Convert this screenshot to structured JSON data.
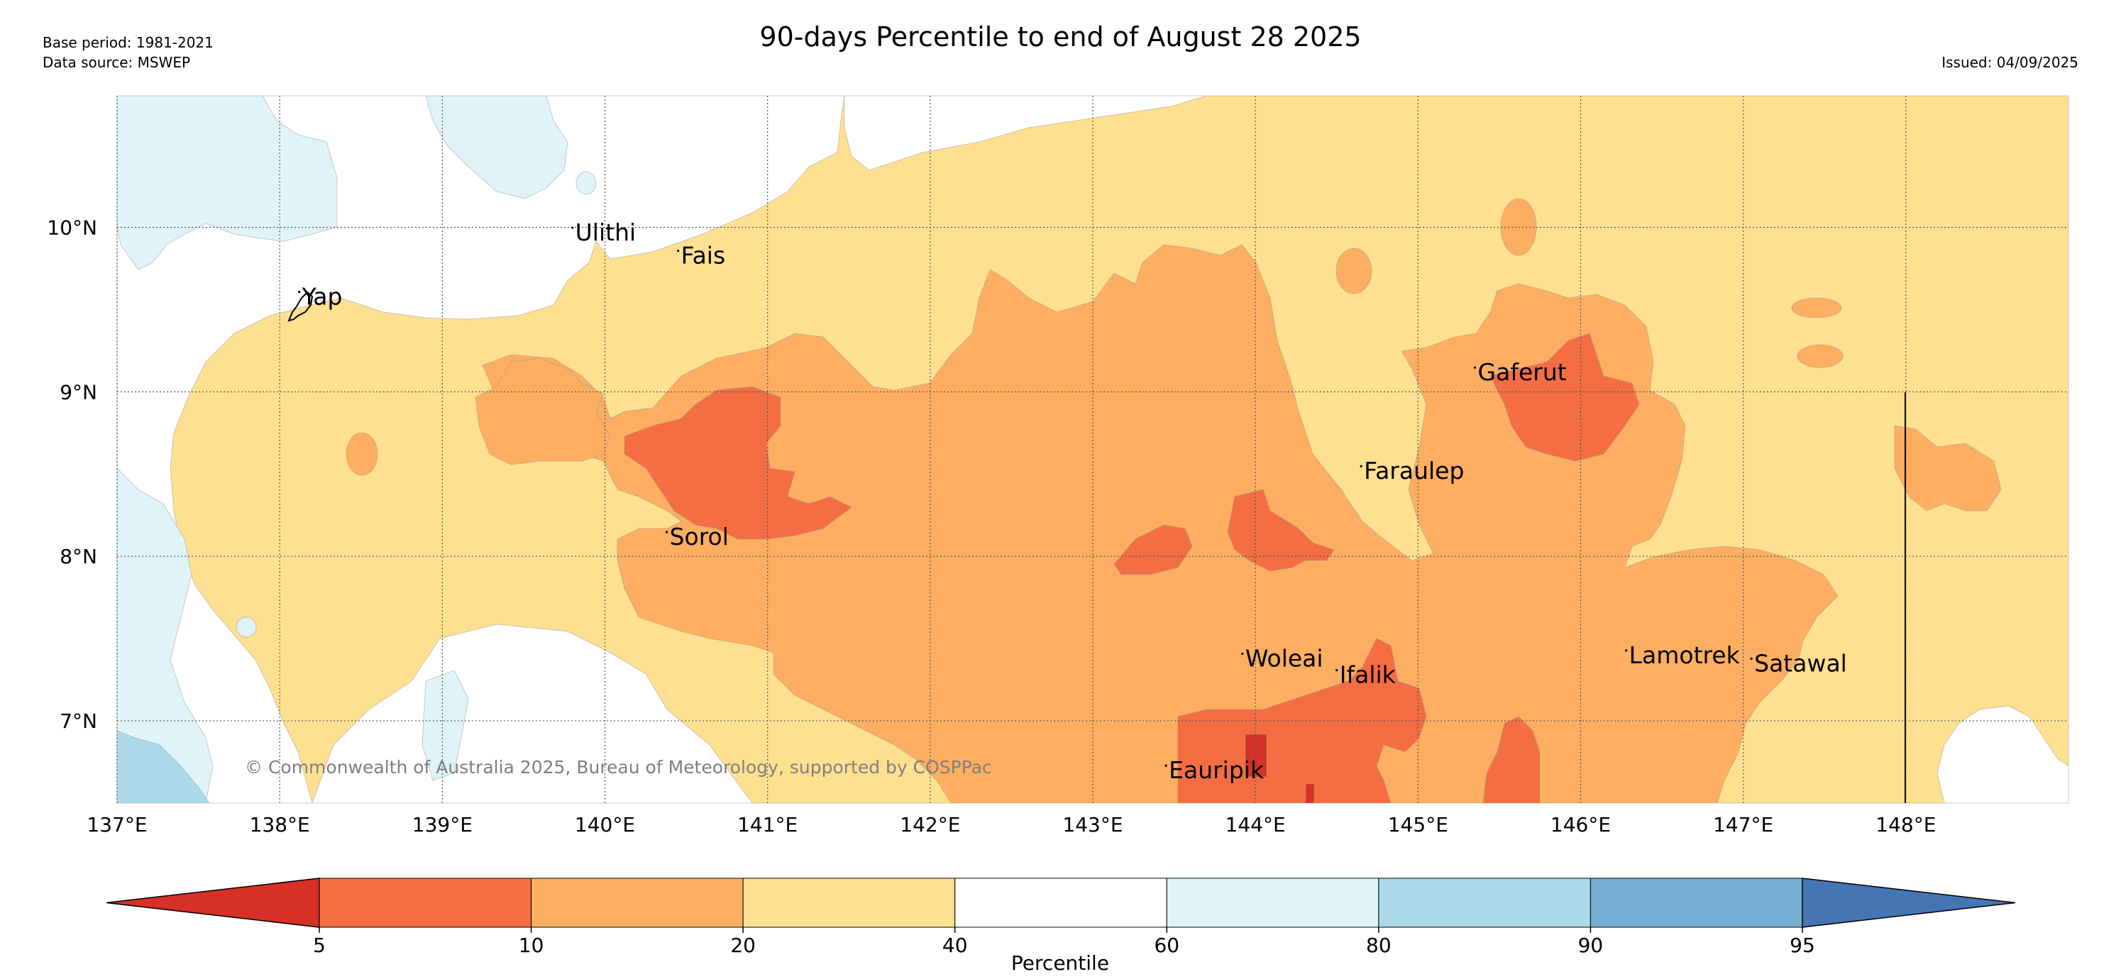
{
  "header": {
    "title": "90-days Percentile to end of August 28 2025",
    "base_period": "Base period: 1981-2021",
    "data_source": "Data source: MSWEP",
    "issued": "Issued: 04/09/2025"
  },
  "map": {
    "lon_range": [
      137.0,
      149.0
    ],
    "lat_range": [
      6.5,
      10.8
    ],
    "lon_ticks": [
      {
        "value": 137,
        "label": "137°E"
      },
      {
        "value": 138,
        "label": "138°E"
      },
      {
        "value": 139,
        "label": "139°E"
      },
      {
        "value": 140,
        "label": "140°E"
      },
      {
        "value": 141,
        "label": "141°E"
      },
      {
        "value": 142,
        "label": "142°E"
      },
      {
        "value": 143,
        "label": "143°E"
      },
      {
        "value": 144,
        "label": "144°E"
      },
      {
        "value": 145,
        "label": "145°E"
      },
      {
        "value": 146,
        "label": "146°E"
      },
      {
        "value": 147,
        "label": "147°E"
      },
      {
        "value": 148,
        "label": "148°E"
      }
    ],
    "lat_ticks": [
      {
        "value": 10,
        "label": "10°N"
      },
      {
        "value": 9,
        "label": "9°N"
      },
      {
        "value": 8,
        "label": "8°N"
      },
      {
        "value": 7,
        "label": "7°N"
      }
    ],
    "places": [
      {
        "name": "Ulithi",
        "lon": 139.8,
        "lat": 9.92
      },
      {
        "name": "Fais",
        "lon": 140.45,
        "lat": 9.78
      },
      {
        "name": "Yap",
        "lon": 138.12,
        "lat": 9.53
      },
      {
        "name": "Gaferut",
        "lon": 145.35,
        "lat": 9.07
      },
      {
        "name": "Faraulep",
        "lon": 144.65,
        "lat": 8.47
      },
      {
        "name": "Sorol",
        "lon": 140.38,
        "lat": 8.07
      },
      {
        "name": "Woleai",
        "lon": 143.92,
        "lat": 7.33
      },
      {
        "name": "Ifalik",
        "lon": 144.5,
        "lat": 7.23
      },
      {
        "name": "Lamotrek",
        "lon": 146.28,
        "lat": 7.35
      },
      {
        "name": "Satawal",
        "lon": 147.05,
        "lat": 7.3
      },
      {
        "name": "Eauripik",
        "lon": 143.45,
        "lat": 6.65
      }
    ],
    "copyright": "© Commonwealth of Australia 2025, Bureau of Meteorology, supported by COSPPac"
  },
  "colors": {
    "below_5": "#d73027",
    "p5_10": "#f46d43",
    "p10_20": "#fdae61",
    "p20_40": "#fee090",
    "p40_60": "#ffffff",
    "p60_80": "#e0f3f8",
    "p80_90": "#abd9e9",
    "p90_95": "#74add1",
    "above_95": "#4575b4",
    "outline": "#000000",
    "copyright": "#7f7f7f"
  },
  "colorbar": {
    "label": "Percentile",
    "ticks": [
      "5",
      "10",
      "20",
      "40",
      "60",
      "80",
      "90",
      "95"
    ],
    "bins": [
      {
        "range": "<5",
        "color": "#d73027"
      },
      {
        "range": "5-10",
        "color": "#f46d43"
      },
      {
        "range": "10-20",
        "color": "#fdae61"
      },
      {
        "range": "20-40",
        "color": "#fee090"
      },
      {
        "range": "40-60",
        "color": "#ffffff"
      },
      {
        "range": "60-80",
        "color": "#e0f3f8"
      },
      {
        "range": "80-90",
        "color": "#abd9e9"
      },
      {
        "range": "90-95",
        "color": "#74add1"
      },
      {
        "range": ">95",
        "color": "#4575b4"
      }
    ]
  }
}
